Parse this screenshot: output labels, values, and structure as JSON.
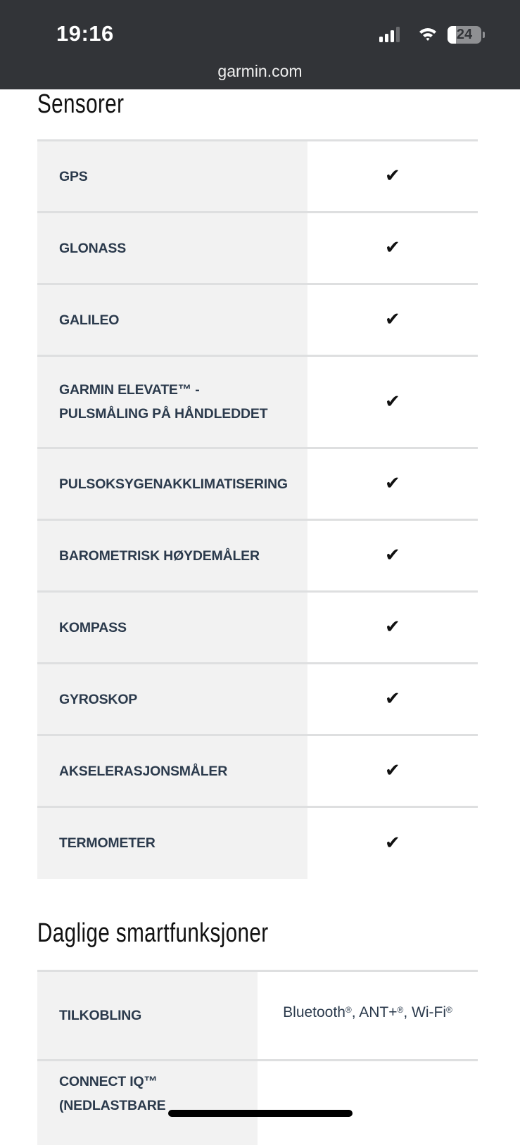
{
  "status_bar": {
    "time": "19:16",
    "battery": "24",
    "signal_bars": 3,
    "icons": [
      "signal-icon",
      "wifi-icon",
      "battery-icon"
    ]
  },
  "browser": {
    "url": "garmin.com"
  },
  "sections": [
    {
      "title": "Sensorer",
      "rows": [
        {
          "label": "GPS",
          "value": "check"
        },
        {
          "label": "GLONASS",
          "value": "check"
        },
        {
          "label": "GALILEO",
          "value": "check"
        },
        {
          "label": "GARMIN ELEVATE™ - PULSMÅLING PÅ HÅNDLEDDET",
          "value": "check"
        },
        {
          "label": "PULSOKSYGENAKKLIMATISERING",
          "value": "check"
        },
        {
          "label": "BAROMETRISK HØYDEMÅLER",
          "value": "check"
        },
        {
          "label": "KOMPASS",
          "value": "check"
        },
        {
          "label": "GYROSKOP",
          "value": "check"
        },
        {
          "label": "AKSELERASJONSMÅLER",
          "value": "check"
        },
        {
          "label": "TERMOMETER",
          "value": "check"
        }
      ]
    },
    {
      "title": "Daglige smartfunksjoner",
      "rows": [
        {
          "label": "TILKOBLING",
          "value": "Bluetooth®, ANT+®, Wi-Fi®"
        },
        {
          "label": "CONNECT IQ™ (NEDLASTBARE",
          "value": ""
        }
      ]
    }
  ],
  "check_glyph": "✔"
}
